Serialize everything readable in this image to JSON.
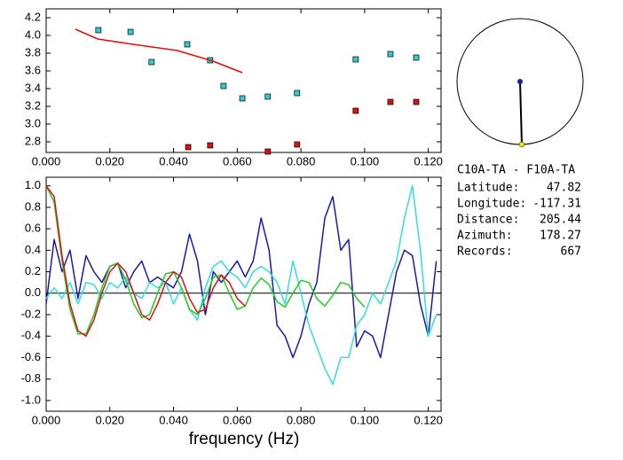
{
  "chart_data": [
    {
      "type": "scatter",
      "xlim": [
        0,
        0.124
      ],
      "ylim": [
        2.68,
        4.3
      ],
      "xticks": [
        {
          "value": 0,
          "label": "0.000"
        },
        {
          "value": 0.02,
          "label": "0.020"
        },
        {
          "value": 0.04,
          "label": "0.040"
        },
        {
          "value": 0.06,
          "label": "0.060"
        },
        {
          "value": 0.08,
          "label": "0.080"
        },
        {
          "value": 0.1,
          "label": "0.100"
        },
        {
          "value": 0.12,
          "label": "0.120"
        }
      ],
      "yticks": [
        2.8,
        {
          "value": 3,
          "label": "3.0"
        },
        3.2,
        3.4,
        3.6,
        3.8,
        {
          "value": 4,
          "label": "4.0"
        },
        4.2
      ],
      "series": [
        {
          "color": "#33cccc",
          "marker": "square",
          "x": [
            0.0164,
            0.0265,
            0.0331,
            0.0443,
            0.0515,
            0.0557,
            0.0616,
            0.0696,
            0.0788,
            0.0972,
            0.1081,
            0.1162
          ],
          "values": [
            4.06,
            4.04,
            3.7,
            3.9,
            3.72,
            3.43,
            3.29,
            3.31,
            3.35,
            3.73,
            3.79,
            3.75
          ]
        },
        {
          "color": "#dd1111",
          "marker": "square",
          "x": [
            0.0446,
            0.0515,
            0.0696,
            0.0788,
            0.0972,
            0.1081,
            0.1162
          ],
          "values": [
            2.74,
            2.76,
            2.69,
            2.77,
            3.15,
            3.25,
            3.25
          ]
        },
        {
          "color": "#dd1111",
          "marker": "line",
          "x": [
            0.0092,
            0.0162,
            0.0273,
            0.0412,
            0.0524,
            0.0616
          ],
          "values": [
            4.07,
            3.96,
            3.9,
            3.83,
            3.71,
            3.58
          ]
        }
      ]
    },
    {
      "type": "line",
      "xlabel": "frequency (Hz)",
      "xlim": [
        0,
        0.124
      ],
      "ylim": [
        -1.1,
        1.08
      ],
      "xticks": [
        {
          "value": 0,
          "label": "0.000"
        },
        {
          "value": 0.02,
          "label": "0.020"
        },
        {
          "value": 0.04,
          "label": "0.040"
        },
        {
          "value": 0.06,
          "label": "0.060"
        },
        {
          "value": 0.08,
          "label": "0.080"
        },
        {
          "value": 0.1,
          "label": "0.100"
        },
        {
          "value": 0.12,
          "label": "0.120"
        }
      ],
      "yticks": [
        {
          "value": 1,
          "label": "1.0"
        },
        0.8,
        0.6,
        0.4,
        0.2,
        {
          "value": 0,
          "label": "0.0"
        },
        -0.2,
        -0.4,
        -0.6,
        -0.8,
        {
          "value": -1,
          "label": "-1.0"
        }
      ],
      "zero_line": true,
      "x": [
        0,
        0.0025,
        0.005,
        0.0075,
        0.01,
        0.0125,
        0.015,
        0.0175,
        0.02,
        0.0225,
        0.025,
        0.0275,
        0.03,
        0.0325,
        0.035,
        0.0375,
        0.04,
        0.0425,
        0.045,
        0.0475,
        0.05,
        0.0525,
        0.055,
        0.0575,
        0.06,
        0.0625,
        0.065,
        0.0675,
        0.07,
        0.0725,
        0.075,
        0.0775,
        0.08,
        0.0825,
        0.085,
        0.0875,
        0.09,
        0.0925,
        0.095,
        0.0975,
        0.1,
        0.1025,
        0.105,
        0.1075,
        0.11,
        0.1125,
        0.115,
        0.1175,
        0.12,
        0.1225
      ],
      "series": [
        {
          "color": "#1a1aaa",
          "values": [
            -0.1,
            0.5,
            0.2,
            0.4,
            -0.05,
            0.35,
            0.2,
            0.1,
            0.25,
            0.28,
            0.05,
            0.2,
            0.3,
            0.1,
            0.15,
            0.1,
            0.05,
            0.2,
            0.55,
            0.3,
            -0.2,
            0.2,
            0.1,
            0.2,
            0.3,
            0.15,
            0.3,
            0.7,
            0.4,
            -0.3,
            -0.4,
            -0.6,
            -0.4,
            -0.1,
            0.1,
            0.7,
            0.9,
            0.4,
            0.5,
            -0.5,
            -0.35,
            -0.4,
            -0.6,
            -0.2,
            0.2,
            0.4,
            0.35,
            -0.1,
            -0.4,
            0.3
          ]
        },
        {
          "color": "#33dddd",
          "values": [
            -0.05,
            0.05,
            -0.05,
            0.1,
            -0.1,
            0.1,
            0.08,
            -0.05,
            0.1,
            0.05,
            0.15,
            0,
            -0.05,
            0.1,
            0.05,
            0.1,
            -0.1,
            0.05,
            -0.15,
            -0.25,
            0.05,
            0.25,
            0.3,
            0.2,
            0.15,
            0.05,
            0.2,
            0.25,
            0.2,
            0.1,
            -0.1,
            0.3,
            0,
            -0.3,
            -0.5,
            -0.7,
            -0.85,
            -0.6,
            -0.6,
            -0.3,
            -0.2,
            0,
            -0.1,
            0.1,
            0.3,
            0.7,
            1.0,
            0.4,
            -0.4,
            -0.2
          ]
        },
        {
          "color": "#22cc22",
          "values": [
            1.0,
            0.85,
            0.3,
            -0.15,
            -0.38,
            -0.38,
            -0.2,
            0.05,
            0.25,
            0.28,
            0.12,
            -0.1,
            -0.23,
            -0.2,
            0,
            0.18,
            0.2,
            0.05,
            -0.15,
            -0.2,
            -0.05,
            0.15,
            0.17,
            0,
            -0.15,
            -0.12,
            0.05,
            0.14,
            0.08,
            -0.08,
            -0.13,
            0,
            0.12,
            0.1,
            -0.05,
            -0.12,
            -0.02,
            0.1,
            0.08,
            -0.05,
            -0.13,
            null,
            null,
            null,
            null,
            null,
            null,
            null,
            null,
            null
          ]
        },
        {
          "color": "#dd1111",
          "values": [
            1.0,
            0.9,
            0.35,
            -0.1,
            -0.35,
            -0.4,
            -0.25,
            0,
            0.2,
            0.28,
            0.2,
            0,
            -0.2,
            -0.25,
            -0.1,
            0.1,
            0.2,
            0.15,
            -0.05,
            -0.18,
            -0.15,
            0.05,
            0.17,
            0.1,
            -0.05,
            -0.12,
            null,
            null,
            null,
            null,
            null,
            null,
            null,
            null,
            null,
            null,
            null,
            null,
            null,
            null,
            null,
            null,
            null,
            null,
            null,
            null,
            null,
            null,
            null,
            null
          ]
        }
      ]
    }
  ],
  "info": {
    "title": "C10A-TA - F10A-TA",
    "rows": [
      [
        "Latitude:",
        "47.82"
      ],
      [
        "Longitude:",
        "-117.31"
      ],
      [
        "Distance:",
        "205.44"
      ],
      [
        "Azimuth:",
        "178.27"
      ],
      [
        "Records:",
        "667"
      ]
    ]
  }
}
